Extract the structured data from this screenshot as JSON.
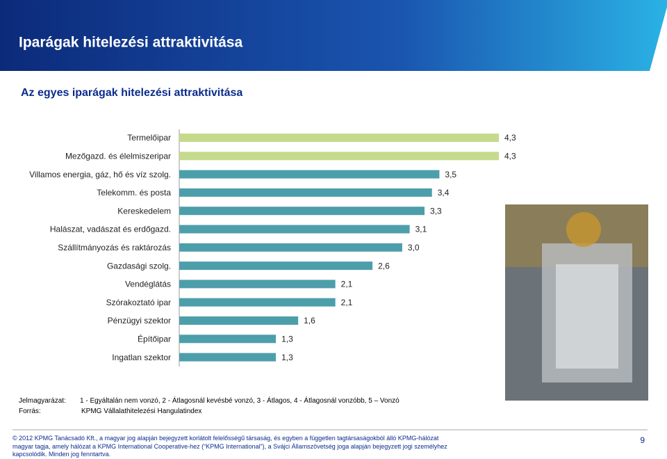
{
  "header": {
    "title": "Iparágak hitelezési attraktivitása"
  },
  "chart_data": {
    "type": "hbar",
    "title": "Az egyes iparágak hitelezési attraktivitása",
    "categories": [
      "Termelőipar",
      "Mezőgazd. és élelmiszeripar",
      "Villamos energia, gáz, hő és víz szolg.",
      "Telekomm. és posta",
      "Kereskedelem",
      "Halászat, vadászat és erdőgazd.",
      "Szállítmányozás és raktározás",
      "Gazdasági szolg.",
      "Vendéglátás",
      "Szórakoztató ipar",
      "Pénzügyi szektor",
      "Építőipar",
      "Ingatlan szektor"
    ],
    "values": [
      4.3,
      4.3,
      3.5,
      3.4,
      3.3,
      3.1,
      3.0,
      2.6,
      2.1,
      2.1,
      1.6,
      1.3,
      1.3
    ],
    "value_labels": [
      "4,3",
      "4,3",
      "3,5",
      "3,4",
      "3,3",
      "3,1",
      "3,0",
      "2,6",
      "2,1",
      "2,1",
      "1,6",
      "1,3",
      "1,3"
    ],
    "colors": [
      "#c5da8c",
      "#c5da8c",
      "#4d9eab",
      "#4d9eab",
      "#4d9eab",
      "#4d9eab",
      "#4d9eab",
      "#4d9eab",
      "#4d9eab",
      "#4d9eab",
      "#4d9eab",
      "#4d9eab",
      "#4d9eab"
    ]
  },
  "notes": {
    "legend_label": "Jelmagyarázat:",
    "legend_text": "1 - Egyáltalán nem vonzó, 2 - Átlagosnál kevésbé vonzó, 3 - Átlagos, 4 - Átlagosnál vonzóbb, 5 – Vonzó",
    "source_label": "Forrás:",
    "source_text": "KPMG Vállalathitelezési Hangulatindex"
  },
  "footer": {
    "lines": [
      "© 2012 KPMG Tanácsadó Kft., a magyar jog alapján bejegyzett korlátolt felelősségű társaság, és egyben a független tagtársaságokból álló KPMG-hálózat",
      "magyar tagja, amely hálózat a KPMG International Cooperative-hez (“KPMG International”), a Svájci Államszövetség joga alapján bejegyzett jogi személyhez",
      "kapcsolódik. Minden jog fenntartva."
    ],
    "page": "9"
  }
}
